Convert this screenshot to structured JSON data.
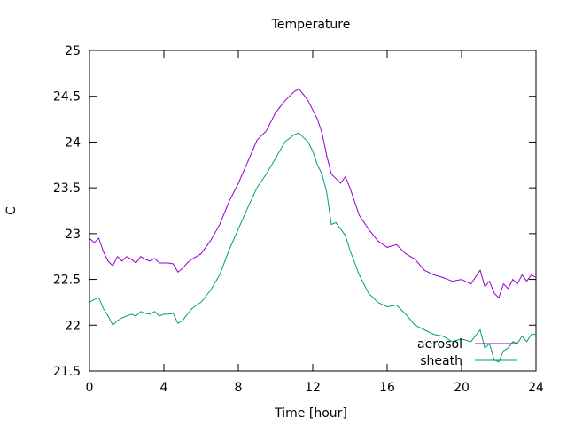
{
  "chart_data": {
    "type": "line",
    "title": "Temperature",
    "xlabel": "Time [hour]",
    "ylabel": "C",
    "xlim": [
      0,
      24
    ],
    "ylim": [
      21.5,
      25
    ],
    "xticks": [
      "0",
      "4",
      "8",
      "12",
      "16",
      "20",
      "24"
    ],
    "yticks": [
      "21.5",
      "22",
      "22.5",
      "23",
      "23.5",
      "24",
      "24.5",
      "25"
    ],
    "grid": false,
    "legend_position": "bottom-right",
    "series": [
      {
        "name": "aerosol",
        "color": "#9400d3",
        "x": [
          0,
          0.25,
          0.5,
          0.75,
          1.0,
          1.25,
          1.5,
          1.75,
          2.0,
          2.25,
          2.5,
          2.75,
          3.0,
          3.25,
          3.5,
          3.75,
          4.0,
          4.25,
          4.5,
          4.75,
          5.0,
          5.25,
          5.5,
          5.75,
          6.0,
          6.5,
          7.0,
          7.5,
          8.0,
          8.5,
          9.0,
          9.5,
          10.0,
          10.5,
          11.0,
          11.25,
          11.5,
          11.75,
          12.0,
          12.25,
          12.5,
          12.75,
          13.0,
          13.25,
          13.5,
          13.75,
          14.0,
          14.5,
          15.0,
          15.5,
          16.0,
          16.5,
          17.0,
          17.5,
          18.0,
          18.5,
          19.0,
          19.5,
          20.0,
          20.5,
          21.0,
          21.25,
          21.5,
          21.75,
          22.0,
          22.25,
          22.5,
          22.75,
          23.0,
          23.25,
          23.5,
          23.75,
          24.0
        ],
        "values": [
          22.95,
          22.9,
          22.95,
          22.8,
          22.7,
          22.65,
          22.75,
          22.7,
          22.75,
          22.72,
          22.68,
          22.75,
          22.72,
          22.7,
          22.73,
          22.68,
          22.68,
          22.68,
          22.67,
          22.58,
          22.62,
          22.68,
          22.72,
          22.75,
          22.78,
          22.92,
          23.1,
          23.35,
          23.55,
          23.78,
          24.02,
          24.12,
          24.32,
          24.45,
          24.55,
          24.58,
          24.52,
          24.45,
          24.35,
          24.25,
          24.1,
          23.85,
          23.65,
          23.6,
          23.55,
          23.62,
          23.5,
          23.2,
          23.05,
          22.92,
          22.85,
          22.88,
          22.78,
          22.72,
          22.6,
          22.55,
          22.52,
          22.48,
          22.5,
          22.45,
          22.6,
          22.42,
          22.48,
          22.35,
          22.3,
          22.45,
          22.4,
          22.5,
          22.45,
          22.55,
          22.48,
          22.55,
          22.52
        ]
      },
      {
        "name": "sheath",
        "color": "#009e73",
        "x": [
          0,
          0.25,
          0.5,
          0.75,
          1.0,
          1.25,
          1.5,
          1.75,
          2.0,
          2.25,
          2.5,
          2.75,
          3.0,
          3.25,
          3.5,
          3.75,
          4.0,
          4.25,
          4.5,
          4.75,
          5.0,
          5.25,
          5.5,
          5.75,
          6.0,
          6.5,
          7.0,
          7.5,
          8.0,
          8.5,
          9.0,
          9.5,
          10.0,
          10.5,
          11.0,
          11.25,
          11.5,
          11.75,
          12.0,
          12.25,
          12.5,
          12.75,
          13.0,
          13.25,
          13.5,
          13.75,
          14.0,
          14.5,
          15.0,
          15.5,
          16.0,
          16.5,
          17.0,
          17.5,
          18.0,
          18.5,
          19.0,
          19.5,
          20.0,
          20.5,
          21.0,
          21.25,
          21.5,
          21.75,
          22.0,
          22.25,
          22.5,
          22.75,
          23.0,
          23.25,
          23.5,
          23.75,
          24.0
        ],
        "values": [
          22.25,
          22.28,
          22.3,
          22.18,
          22.1,
          22.0,
          22.05,
          22.08,
          22.1,
          22.12,
          22.1,
          22.15,
          22.13,
          22.12,
          22.15,
          22.1,
          22.12,
          22.12,
          22.13,
          22.02,
          22.05,
          22.12,
          22.18,
          22.22,
          22.25,
          22.38,
          22.55,
          22.82,
          23.05,
          23.28,
          23.5,
          23.65,
          23.82,
          24.0,
          24.08,
          24.1,
          24.05,
          24.0,
          23.9,
          23.75,
          23.65,
          23.45,
          23.1,
          23.12,
          23.05,
          22.98,
          22.82,
          22.55,
          22.35,
          22.25,
          22.2,
          22.22,
          22.12,
          22.0,
          21.95,
          21.9,
          21.88,
          21.82,
          21.85,
          21.82,
          21.95,
          21.75,
          21.8,
          21.62,
          21.6,
          21.72,
          21.75,
          21.82,
          21.8,
          21.88,
          21.82,
          21.9,
          21.9
        ]
      }
    ]
  }
}
